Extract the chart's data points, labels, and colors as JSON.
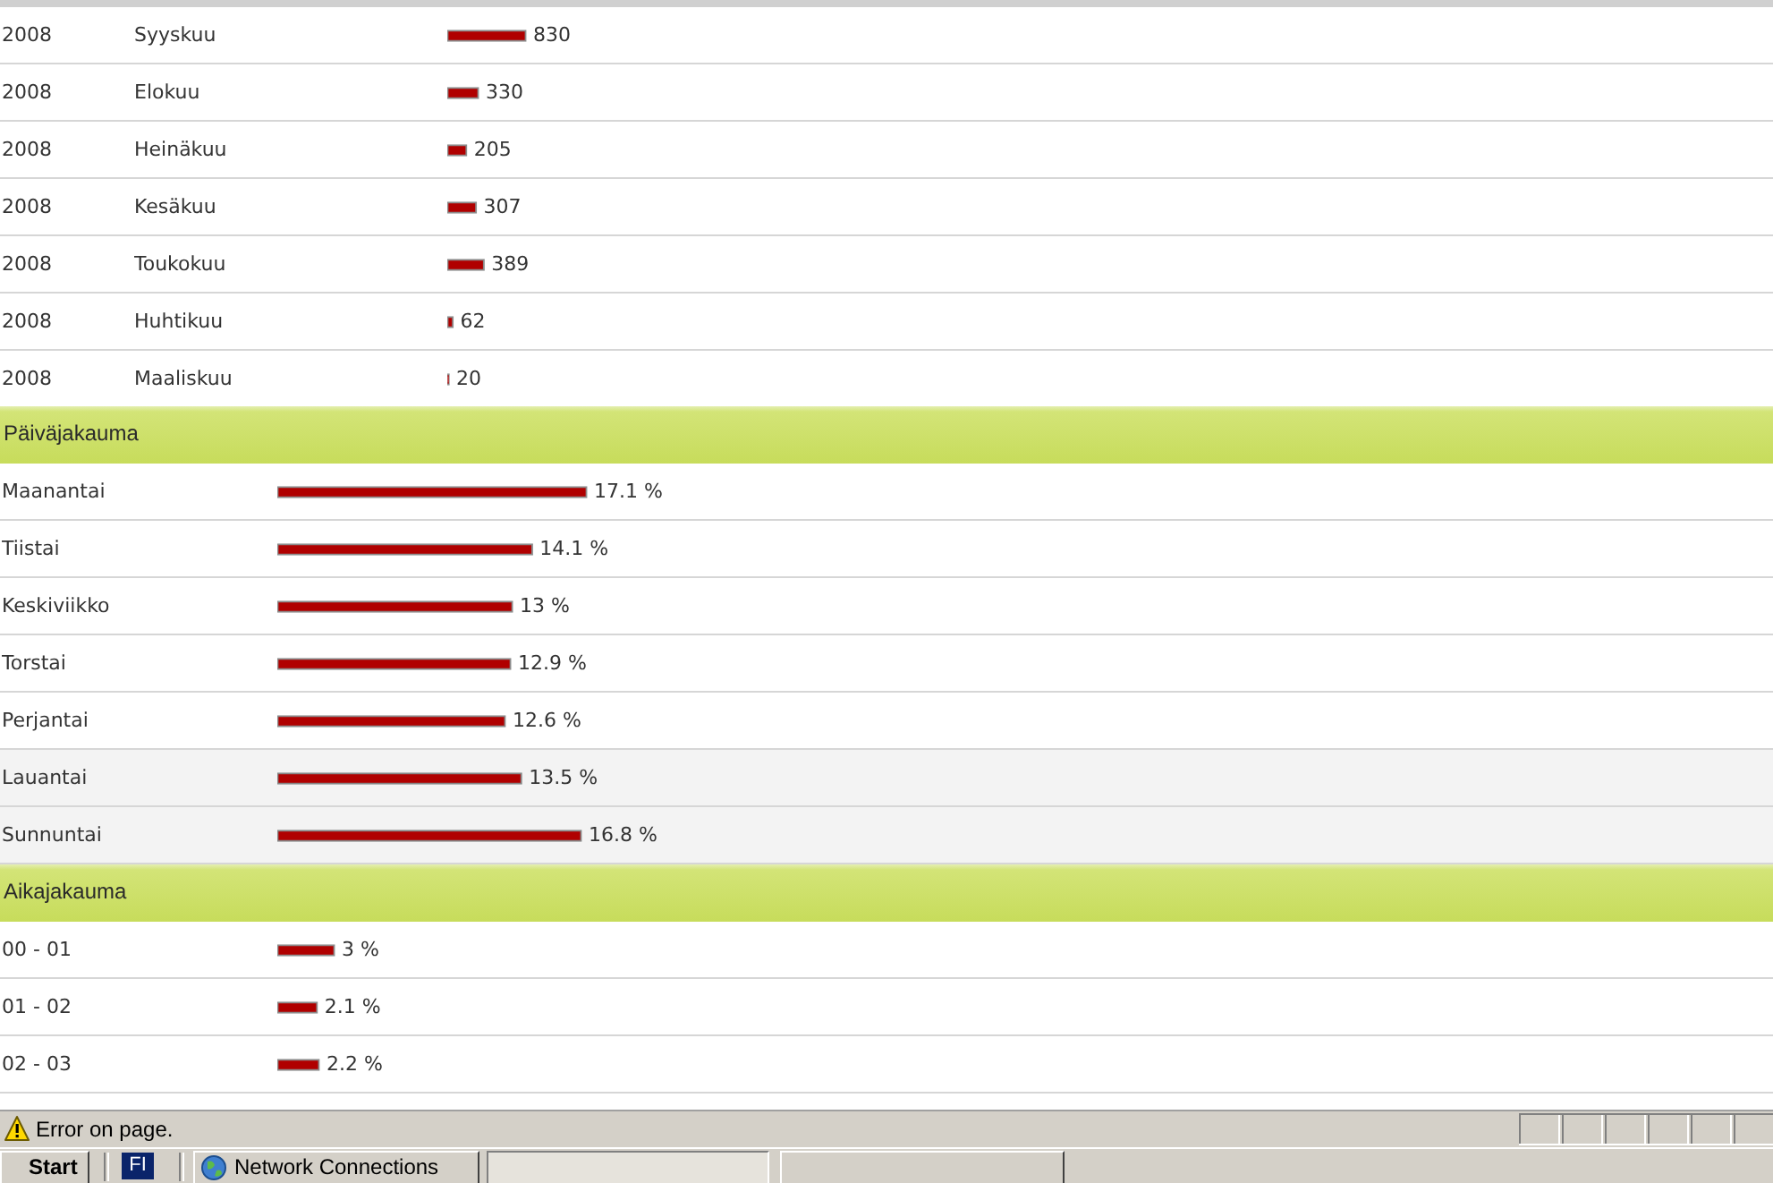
{
  "chart_data": [
    {
      "type": "bar",
      "orientation": "horizontal",
      "categories": [
        "Syyskuu",
        "Elokuu",
        "Heinäkuu",
        "Kesäkuu",
        "Toukokuu",
        "Huhtikuu",
        "Maaliskuu"
      ],
      "values": [
        830,
        330,
        205,
        307,
        389,
        62,
        20
      ],
      "color": "#b00000",
      "data_labels": true,
      "annotations": [
        "2008",
        "2008",
        "2008",
        "2008",
        "2008",
        "2008",
        "2008"
      ]
    },
    {
      "type": "bar",
      "orientation": "horizontal",
      "title": "Päiväjakauma",
      "categories": [
        "Maanantai",
        "Tiistai",
        "Keskiviikko",
        "Torstai",
        "Perjantai",
        "Lauantai",
        "Sunnuntai"
      ],
      "values": [
        17.1,
        14.1,
        13,
        12.9,
        12.6,
        13.5,
        16.8
      ],
      "value_labels": [
        "17.1 %",
        "14.1 %",
        "13 %",
        "12.9 %",
        "12.6 %",
        "13.5 %",
        "16.8 %"
      ],
      "color": "#b00000",
      "bands": [
        {
          "axis": "y",
          "from": "Lauantai",
          "to": "Sunnuntai",
          "color": "#f3f3f3"
        }
      ]
    },
    {
      "type": "bar",
      "orientation": "horizontal",
      "title": "Aikajakauma",
      "categories": [
        "00 - 01",
        "01 - 02",
        "02 - 03"
      ],
      "values": [
        3,
        2.1,
        2.2
      ],
      "value_labels": [
        "3 %",
        "2.1 %",
        "2.2 %"
      ],
      "color": "#b00000"
    },
    {
      "type": "other",
      "annotations": [
        "Error on page.",
        "Start",
        "FI",
        "Network Connections"
      ]
    }
  ]
}
